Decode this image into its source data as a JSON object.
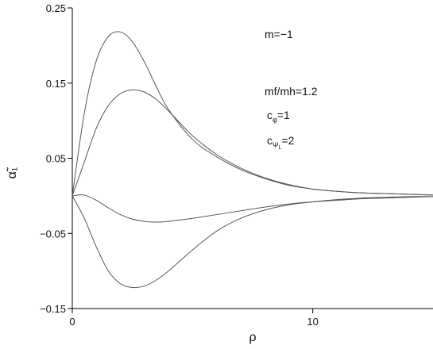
{
  "chart_data": {
    "type": "line",
    "title": "",
    "xlabel": "ρ",
    "ylabel": "α̃₁",
    "xlim": [
      0,
      15
    ],
    "ylim": [
      -0.15,
      0.25
    ],
    "x_ticks": [
      {
        "value": 0,
        "label": "0"
      },
      {
        "value": 10,
        "label": "10"
      }
    ],
    "y_ticks": [
      {
        "value": 0.25,
        "label": "0.25"
      },
      {
        "value": 0.15,
        "label": "0.15"
      },
      {
        "value": 0.05,
        "label": "0.05"
      },
      {
        "value": -0.05,
        "label": "−0.05"
      },
      {
        "value": -0.15,
        "label": "−0.15"
      }
    ],
    "grid": false,
    "annotations": {
      "m": "m=−1",
      "ratio": "mf/mh=1.2",
      "c_phi_base": "c",
      "c_phi_sub": "φ",
      "c_phi_val": "=1",
      "c_psi_base": "c",
      "c_psi_sub": "Ψ",
      "c_psi_subsub": "L",
      "c_psi_val": "=2"
    },
    "series": [
      {
        "x": [
          0,
          0.5,
          1,
          1.5,
          2,
          2.5,
          3,
          3.5,
          4,
          5,
          6,
          7,
          8,
          9,
          10,
          11,
          12,
          13,
          14,
          15
        ],
        "values": [
          0,
          0.11,
          0.18,
          0.212,
          0.218,
          0.205,
          0.178,
          0.145,
          0.115,
          0.075,
          0.052,
          0.035,
          0.023,
          0.014,
          0.009,
          0.006,
          0.004,
          0.003,
          0.002,
          0.001
        ]
      },
      {
        "x": [
          0,
          0.5,
          1,
          1.5,
          2,
          2.5,
          3,
          3.5,
          4,
          5,
          6,
          7,
          8,
          9,
          10,
          11,
          12,
          13,
          14,
          15
        ],
        "values": [
          0,
          0.045,
          0.09,
          0.12,
          0.136,
          0.141,
          0.138,
          0.128,
          0.113,
          0.08,
          0.055,
          0.037,
          0.024,
          0.015,
          0.009,
          0.006,
          0.004,
          0.003,
          0.002,
          0.001
        ]
      },
      {
        "x": [
          0,
          0.5,
          1,
          1.5,
          2,
          2.5,
          3,
          3.5,
          4,
          5,
          6,
          7,
          8,
          9,
          10,
          11,
          12,
          13,
          14,
          15
        ],
        "values": [
          0,
          0.001,
          -0.006,
          -0.016,
          -0.025,
          -0.031,
          -0.034,
          -0.035,
          -0.034,
          -0.03,
          -0.025,
          -0.02,
          -0.015,
          -0.011,
          -0.008,
          -0.006,
          -0.004,
          -0.003,
          -0.002,
          -0.001
        ]
      },
      {
        "x": [
          0,
          0.5,
          1,
          1.5,
          2,
          2.5,
          3,
          3.5,
          4,
          5,
          6,
          7,
          8,
          9,
          10,
          11,
          12,
          13,
          14,
          15
        ],
        "values": [
          0,
          -0.03,
          -0.068,
          -0.1,
          -0.117,
          -0.122,
          -0.12,
          -0.112,
          -0.1,
          -0.072,
          -0.047,
          -0.03,
          -0.019,
          -0.012,
          -0.008,
          -0.005,
          -0.003,
          -0.002,
          -0.001,
          -0.001
        ]
      }
    ]
  }
}
